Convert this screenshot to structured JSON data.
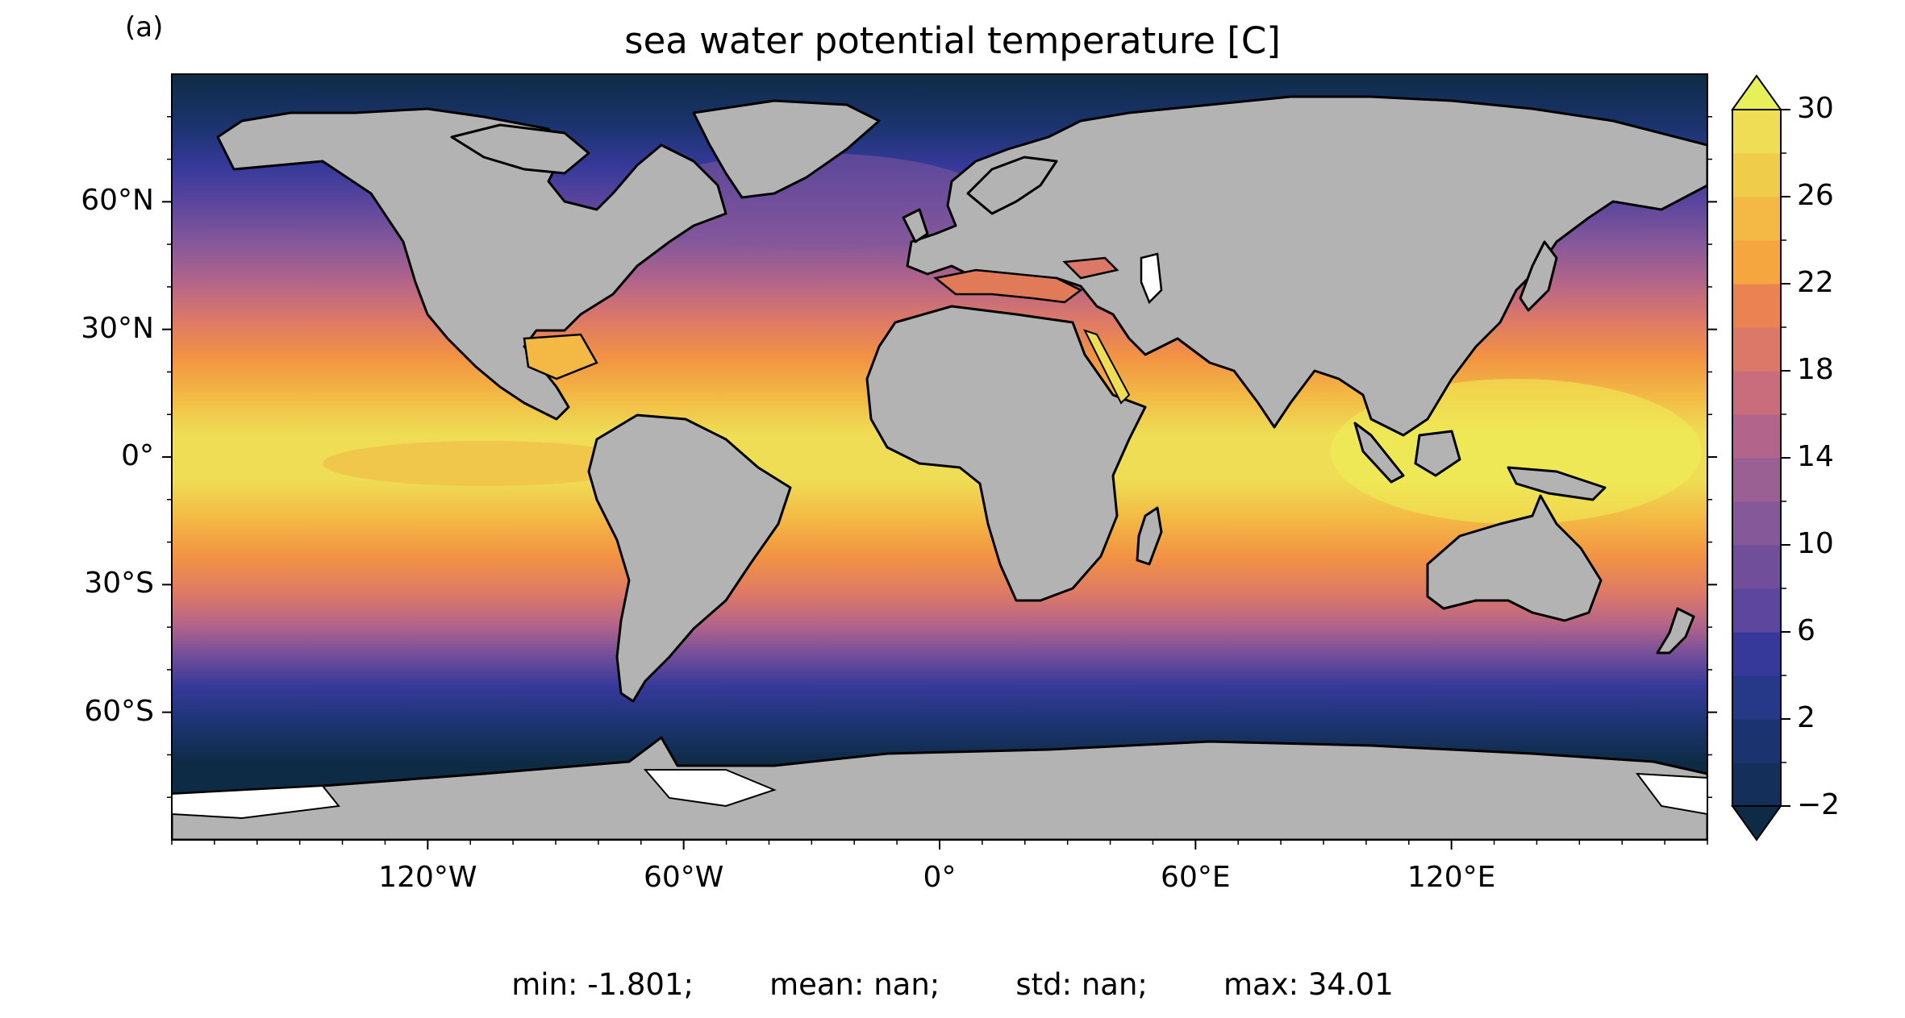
{
  "panel_label": "(a)",
  "title": "sea water potential temperature [C]",
  "stats": {
    "min": "min: -1.801;",
    "mean": "mean: nan;",
    "std": "std: nan;",
    "max": "max: 34.01"
  },
  "map": {
    "projection": "PlateCarree",
    "lon_range": [
      -180,
      180
    ],
    "lat_range": [
      -90,
      90
    ],
    "lon_ticks": [
      {
        "value": -120,
        "label": "120°W"
      },
      {
        "value": -60,
        "label": "60°W"
      },
      {
        "value": 0,
        "label": "0°"
      },
      {
        "value": 60,
        "label": "60°E"
      },
      {
        "value": 120,
        "label": "120°E"
      }
    ],
    "lat_ticks": [
      {
        "value": 60,
        "label": "60°N"
      },
      {
        "value": 30,
        "label": "30°N"
      },
      {
        "value": 0,
        "label": "0°"
      },
      {
        "value": -30,
        "label": "30°S"
      },
      {
        "value": -60,
        "label": "60°S"
      }
    ],
    "land_color": "#b3b3b3"
  },
  "colorbar": {
    "min": -2,
    "max": 30,
    "step": 2,
    "extend": "both",
    "tick_labels": [
      "30",
      "26",
      "22",
      "18",
      "14",
      "10",
      "6",
      "2",
      "−2"
    ],
    "colors": [
      "#0e2b45",
      "#142f5a",
      "#1b3470",
      "#263888",
      "#36399a",
      "#4a3f9e",
      "#5d469d",
      "#704e9a",
      "#85589a",
      "#9a5f93",
      "#b2648a",
      "#c96c7b",
      "#dc7868",
      "#ea8252",
      "#f29343",
      "#f5a63f",
      "#f3b944",
      "#f0cc4b",
      "#eedd55",
      "#e7f059"
    ]
  }
}
